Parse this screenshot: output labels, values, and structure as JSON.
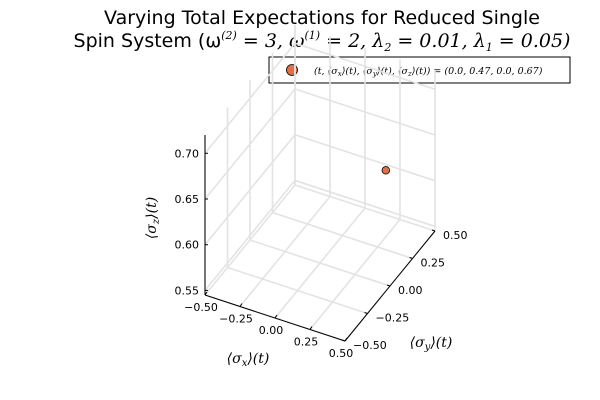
{
  "chart_data": {
    "type": "scatter",
    "title_line1": "Varying Total Expectations for Reduced Single",
    "title_line2": "Spin System (ω",
    "title_params": [
      "(2)",
      " = 3, ω",
      "(1)",
      " = 2, λ",
      "2",
      " = 0.01, λ",
      "1",
      " = 0.05)"
    ],
    "xlabel": "⟨σ",
    "xlabel_sub": "x",
    "xlabel_tail": "⟩(t)",
    "ylabel": "⟨σ",
    "ylabel_sub": "y",
    "ylabel_tail": "⟩(t)",
    "zlabel": "⟨σ",
    "zlabel_sub": "z",
    "zlabel_tail": "⟩(t)",
    "x_ticks": [
      "−0.50",
      "−0.25",
      "0.00",
      "0.25",
      "0.50"
    ],
    "y_ticks": [
      "−0.50",
      "−0.25",
      "0.00",
      "0.25",
      "0.50"
    ],
    "z_ticks": [
      "0.55",
      "0.60",
      "0.65",
      "0.70"
    ],
    "xlim": [
      -0.5,
      0.5
    ],
    "ylim": [
      -0.5,
      0.5
    ],
    "zlim": [
      0.545,
      0.72
    ],
    "grid": true,
    "legend_position": "top-right",
    "legend_label": "(t, ⟨σ",
    "legend_parts": [
      "x",
      "⟩(t), ⟨σ",
      "y",
      "⟩(t), ⟨σ",
      "z",
      "⟩(t)) = (0.0, 0.47, 0.0, 0.67)"
    ],
    "series": [
      {
        "points": [
          {
            "t": 0.0,
            "x": 0.47,
            "y": 0.0,
            "z": 0.67
          }
        ],
        "color": "#e26f46"
      }
    ]
  }
}
